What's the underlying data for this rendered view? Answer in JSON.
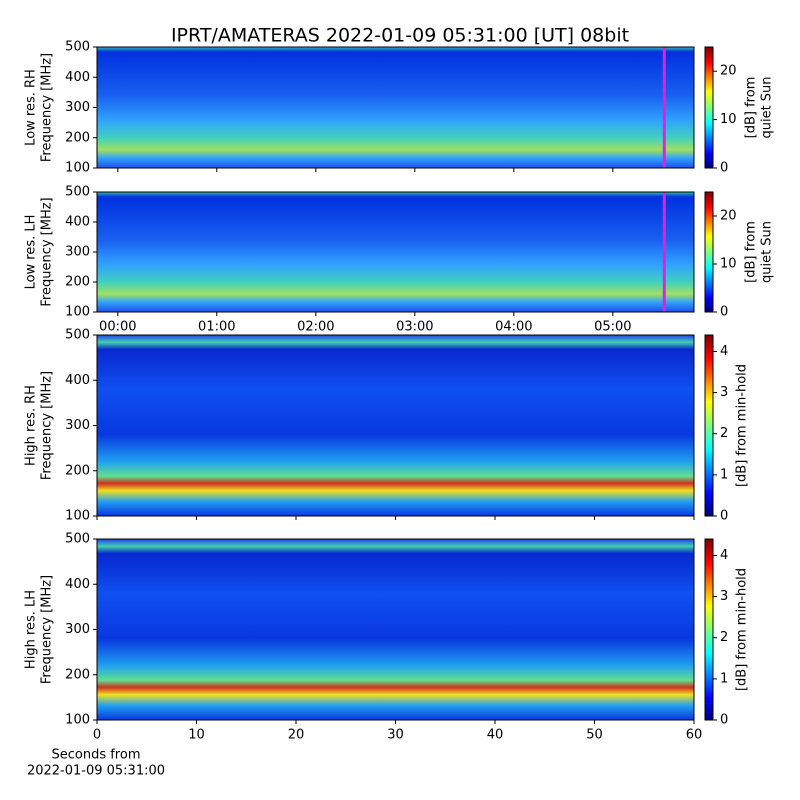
{
  "chart_data": [
    {
      "type": "spectrogram",
      "title": "IPRT/AMATERAS 2022-01-09 05:31:00 [UT]   08bit",
      "ylabel": [
        "Low res. RH",
        "Frequency [MHz]"
      ],
      "ylim": [
        100,
        500
      ],
      "yticks": [
        100,
        200,
        300,
        400,
        500
      ],
      "xlim": [
        -0.21,
        5.82
      ],
      "sharex": 1,
      "cursor": 5.52,
      "cursor_color": "#e020e0",
      "colorbar_label": [
        "[dB] from",
        "quiet Sun"
      ],
      "clim": [
        0,
        25
      ],
      "cticks": [
        0,
        10,
        20
      ]
    },
    {
      "type": "spectrogram",
      "ylabel": [
        "Low res. LH",
        "Frequency [MHz]"
      ],
      "ylim": [
        100,
        500
      ],
      "yticks": [
        100,
        200,
        300,
        400,
        500
      ],
      "xlim": [
        -0.21,
        5.82
      ],
      "xticks": [
        {
          "value": 0,
          "label": "00:00"
        },
        {
          "value": 1,
          "label": "01:00"
        },
        {
          "value": 2,
          "label": "02:00"
        },
        {
          "value": 3,
          "label": "03:00"
        },
        {
          "value": 4,
          "label": "04:00"
        },
        {
          "value": 5,
          "label": "05:00"
        }
      ],
      "cursor": 5.52,
      "cursor_color": "#e020e0",
      "colorbar_label": [
        "[dB] from",
        "quiet Sun"
      ],
      "clim": [
        0,
        25
      ],
      "cticks": [
        0,
        10,
        20
      ]
    },
    {
      "type": "spectrogram",
      "ylabel": [
        "High res. RH",
        "Frequency [MHz]"
      ],
      "ylim": [
        100,
        500
      ],
      "yticks": [
        100,
        200,
        300,
        400,
        500
      ],
      "xlim": [
        0,
        60
      ],
      "sharex": 3,
      "colorbar_label": [
        "[dB] from min-hold"
      ],
      "clim": [
        0,
        4.4
      ],
      "cticks": [
        0,
        1,
        2,
        3,
        4
      ]
    },
    {
      "type": "spectrogram",
      "ylabel": [
        "High res. LH",
        "Frequency [MHz]"
      ],
      "ylim": [
        100,
        500
      ],
      "yticks": [
        100,
        200,
        300,
        400,
        500
      ],
      "xlim": [
        0,
        60
      ],
      "xticks": [
        0,
        10,
        20,
        30,
        40,
        50,
        60
      ],
      "xlabel": [
        "Seconds from",
        "2022-01-09 05:31:00"
      ],
      "colorbar_label": [
        "[dB] from min-hold"
      ],
      "clim": [
        0,
        4.4
      ],
      "cticks": [
        0,
        1,
        2,
        3,
        4
      ]
    }
  ]
}
